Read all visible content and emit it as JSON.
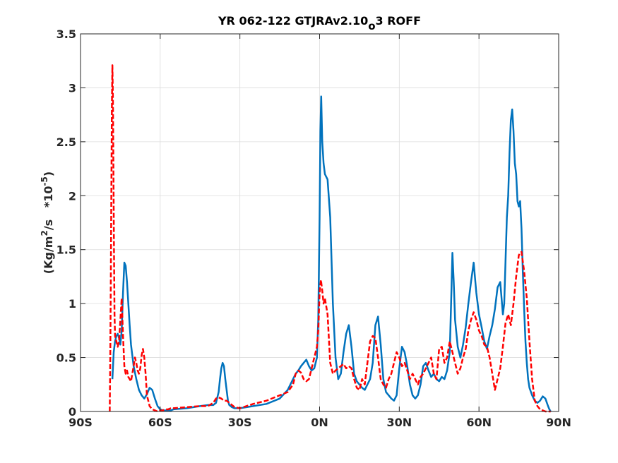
{
  "chart_data": {
    "type": "line",
    "title": {
      "main": "YR 062-122 GTJRAv2.10",
      "subscript": "o",
      "tail": "3 ROFF"
    },
    "ylabel": {
      "pre": "(Kg/m",
      "sup1": "2",
      "mid": "/s   *10",
      "sup2": "-5",
      "post": ")"
    },
    "xlabel": "",
    "xlim": [
      -90,
      90
    ],
    "ylim": [
      0,
      3.5
    ],
    "grid": true,
    "x_ticks": [
      {
        "value": -90,
        "label": "90S"
      },
      {
        "value": -60,
        "label": "60S"
      },
      {
        "value": -30,
        "label": "30S"
      },
      {
        "value": 0,
        "label": "0N"
      },
      {
        "value": 30,
        "label": "30N"
      },
      {
        "value": 60,
        "label": "60N"
      },
      {
        "value": 90,
        "label": "90N"
      }
    ],
    "y_ticks": [
      {
        "value": 0,
        "label": "0"
      },
      {
        "value": 0.5,
        "label": "0.5"
      },
      {
        "value": 1,
        "label": "1"
      },
      {
        "value": 1.5,
        "label": "1.5"
      },
      {
        "value": 2,
        "label": "2"
      },
      {
        "value": 2.5,
        "label": "2.5"
      },
      {
        "value": 3,
        "label": "3"
      },
      {
        "value": 3.5,
        "label": "3.5"
      }
    ],
    "series": [
      {
        "color": "#0072bd",
        "style": "solid",
        "x": [
          -78,
          -77.5,
          -77,
          -76.5,
          -76,
          -75.5,
          -75,
          -74.5,
          -74,
          -73.5,
          -73,
          -72.5,
          -72,
          -71.5,
          -71,
          -70,
          -69,
          -68,
          -67,
          -66,
          -65,
          -64,
          -63,
          -62,
          -61,
          -60,
          -59,
          -58,
          -57,
          -56,
          -55,
          -50,
          -45,
          -42,
          -40,
          -39,
          -38,
          -37.5,
          -37,
          -36.5,
          -36,
          -35.5,
          -35,
          -34.5,
          -34,
          -33,
          -32,
          -30,
          -25,
          -20,
          -15,
          -12,
          -10,
          -9,
          -8,
          -7,
          -6,
          -5,
          -4,
          -3,
          -2,
          -1,
          -0.5,
          0,
          0.3,
          0.6,
          1,
          1.5,
          2,
          3,
          4,
          5,
          6,
          7,
          8,
          9,
          10,
          11,
          12,
          13,
          14,
          15,
          16,
          17,
          18,
          19,
          20,
          21,
          22,
          23,
          24,
          25,
          26,
          27,
          28,
          29,
          30,
          31,
          32,
          33,
          34,
          35,
          36,
          37,
          38,
          39,
          40,
          41,
          42,
          43,
          44,
          45,
          46,
          47,
          48,
          49,
          49.5,
          50,
          50.5,
          51,
          52,
          53,
          54,
          55,
          56,
          57,
          58,
          59,
          60,
          61,
          62,
          63,
          64,
          65,
          66,
          67,
          68,
          68.5,
          69,
          69.5,
          70,
          70.5,
          71,
          71.5,
          72,
          72.5,
          73,
          73.5,
          74,
          74.5,
          75,
          75.5,
          76,
          76.5,
          77,
          77.5,
          78,
          78.5,
          79,
          80,
          81,
          82,
          83,
          84,
          85,
          86,
          86.5,
          87
        ],
        "y": [
          0.3,
          0.55,
          0.65,
          0.7,
          0.72,
          0.68,
          0.62,
          0.75,
          1.1,
          1.38,
          1.35,
          1.2,
          1.0,
          0.8,
          0.62,
          0.42,
          0.3,
          0.2,
          0.15,
          0.12,
          0.16,
          0.22,
          0.2,
          0.12,
          0.05,
          0.02,
          0.01,
          0.01,
          0.01,
          0.01,
          0.02,
          0.03,
          0.05,
          0.06,
          0.06,
          0.08,
          0.18,
          0.3,
          0.4,
          0.45,
          0.42,
          0.3,
          0.2,
          0.1,
          0.06,
          0.04,
          0.03,
          0.03,
          0.05,
          0.07,
          0.12,
          0.2,
          0.3,
          0.35,
          0.38,
          0.42,
          0.45,
          0.48,
          0.42,
          0.38,
          0.4,
          0.5,
          0.85,
          1.8,
          2.6,
          2.92,
          2.5,
          2.3,
          2.2,
          2.15,
          1.8,
          1.0,
          0.5,
          0.3,
          0.35,
          0.55,
          0.72,
          0.8,
          0.6,
          0.35,
          0.28,
          0.25,
          0.22,
          0.2,
          0.25,
          0.3,
          0.45,
          0.8,
          0.88,
          0.62,
          0.3,
          0.18,
          0.15,
          0.12,
          0.1,
          0.15,
          0.4,
          0.6,
          0.55,
          0.42,
          0.25,
          0.15,
          0.12,
          0.15,
          0.25,
          0.42,
          0.45,
          0.38,
          0.32,
          0.35,
          0.3,
          0.28,
          0.32,
          0.3,
          0.38,
          0.55,
          1.0,
          1.47,
          1.2,
          0.85,
          0.6,
          0.5,
          0.62,
          0.78,
          1.0,
          1.2,
          1.38,
          1.1,
          0.9,
          0.78,
          0.65,
          0.58,
          0.7,
          0.8,
          0.95,
          1.15,
          1.2,
          1.05,
          0.9,
          1.0,
          1.4,
          1.8,
          2.0,
          2.4,
          2.7,
          2.8,
          2.6,
          2.3,
          2.2,
          1.95,
          1.9,
          1.95,
          1.7,
          1.3,
          0.95,
          0.65,
          0.45,
          0.3,
          0.22,
          0.15,
          0.1,
          0.08,
          0.1,
          0.14,
          0.12,
          0.05,
          0.02,
          0.0
        ]
      },
      {
        "color": "#ff0000",
        "style": "dashed",
        "x": [
          -79,
          -78.8,
          -78.6,
          -78.4,
          -78.2,
          -78,
          -77.8,
          -77.6,
          -77.4,
          -77.2,
          -77,
          -76.5,
          -76,
          -75.5,
          -75,
          -74.5,
          -74,
          -73.5,
          -73,
          -72.5,
          -72,
          -71.5,
          -71,
          -70,
          -69.5,
          -69,
          -68.5,
          -68,
          -67.5,
          -67,
          -66.5,
          -66,
          -65.5,
          -65,
          -64,
          -63,
          -62,
          -61,
          -60,
          -59,
          -58,
          -57,
          -56,
          -55,
          -50,
          -45,
          -42,
          -40,
          -39,
          -38,
          -37,
          -36,
          -35,
          -34,
          -33,
          -32,
          -30,
          -25,
          -20,
          -15,
          -12,
          -10,
          -9,
          -8,
          -7,
          -6,
          -5,
          -4,
          -3,
          -2,
          -1,
          -0.5,
          0,
          0.5,
          1,
          1.5,
          2,
          3,
          4,
          5,
          6,
          7,
          8,
          9,
          10,
          11,
          12,
          13,
          14,
          15,
          16,
          17,
          18,
          19,
          20,
          21,
          22,
          23,
          24,
          25,
          26,
          27,
          28,
          29,
          30,
          31,
          32,
          33,
          34,
          35,
          36,
          37,
          38,
          39,
          40,
          41,
          42,
          43,
          44,
          45,
          46,
          47,
          48,
          49,
          50,
          51,
          52,
          53,
          54,
          55,
          56,
          57,
          58,
          59,
          60,
          61,
          62,
          63,
          64,
          65,
          66,
          67,
          68,
          69,
          70,
          71,
          72,
          73,
          74,
          75,
          76,
          77,
          78,
          79,
          80,
          81,
          82,
          83,
          84,
          85,
          86,
          87
        ],
        "y": [
          0.0,
          0.5,
          1.2,
          2.0,
          2.8,
          3.21,
          2.9,
          2.2,
          1.5,
          0.9,
          0.7,
          0.65,
          0.6,
          0.65,
          0.85,
          1.05,
          0.7,
          0.42,
          0.35,
          0.38,
          0.32,
          0.3,
          0.28,
          0.42,
          0.5,
          0.45,
          0.38,
          0.35,
          0.4,
          0.52,
          0.58,
          0.5,
          0.35,
          0.15,
          0.05,
          0.02,
          0.01,
          0.0,
          0.01,
          0.01,
          0.02,
          0.02,
          0.03,
          0.03,
          0.04,
          0.05,
          0.05,
          0.08,
          0.12,
          0.13,
          0.12,
          0.1,
          0.1,
          0.08,
          0.06,
          0.04,
          0.03,
          0.07,
          0.1,
          0.15,
          0.18,
          0.25,
          0.35,
          0.38,
          0.36,
          0.3,
          0.28,
          0.3,
          0.4,
          0.5,
          0.6,
          0.75,
          1.1,
          1.22,
          1.12,
          1.0,
          1.05,
          0.9,
          0.45,
          0.35,
          0.38,
          0.4,
          0.42,
          0.44,
          0.4,
          0.42,
          0.4,
          0.3,
          0.22,
          0.2,
          0.3,
          0.25,
          0.45,
          0.65,
          0.7,
          0.68,
          0.5,
          0.3,
          0.25,
          0.22,
          0.3,
          0.35,
          0.45,
          0.55,
          0.5,
          0.42,
          0.45,
          0.38,
          0.3,
          0.35,
          0.3,
          0.25,
          0.32,
          0.35,
          0.4,
          0.45,
          0.5,
          0.35,
          0.3,
          0.58,
          0.6,
          0.45,
          0.5,
          0.65,
          0.55,
          0.45,
          0.35,
          0.4,
          0.5,
          0.58,
          0.75,
          0.85,
          0.92,
          0.85,
          0.75,
          0.7,
          0.62,
          0.6,
          0.5,
          0.35,
          0.2,
          0.3,
          0.4,
          0.6,
          0.82,
          0.9,
          0.8,
          1.0,
          1.25,
          1.45,
          1.48,
          1.3,
          1.05,
          0.65,
          0.3,
          0.1,
          0.05,
          0.02,
          0.01,
          0.0,
          0.0,
          0.0
        ]
      }
    ]
  }
}
